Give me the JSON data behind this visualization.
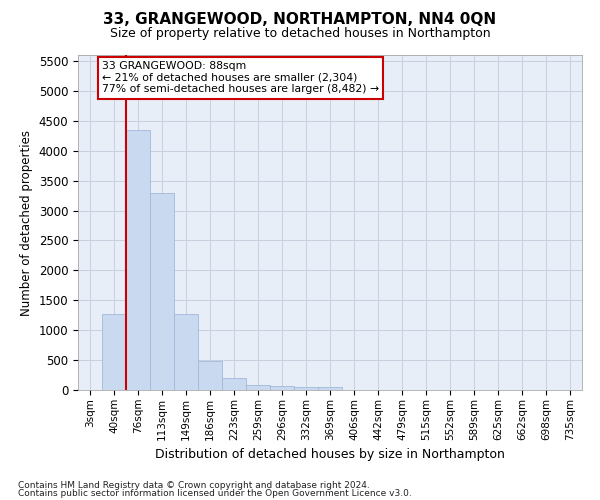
{
  "title": "33, GRANGEWOOD, NORTHAMPTON, NN4 0QN",
  "subtitle": "Size of property relative to detached houses in Northampton",
  "xlabel": "Distribution of detached houses by size in Northampton",
  "ylabel": "Number of detached properties",
  "footnote1": "Contains HM Land Registry data © Crown copyright and database right 2024.",
  "footnote2": "Contains public sector information licensed under the Open Government Licence v3.0.",
  "bar_color": "#c9d9f0",
  "bar_edgecolor": "#a0b8d8",
  "bg_color": "#e8eef8",
  "grid_color": "#c8d0e0",
  "property_line_color": "#cc0000",
  "annotation_box_edgecolor": "#cc0000",
  "categories": [
    "3sqm",
    "40sqm",
    "76sqm",
    "113sqm",
    "149sqm",
    "186sqm",
    "223sqm",
    "259sqm",
    "296sqm",
    "332sqm",
    "369sqm",
    "406sqm",
    "442sqm",
    "479sqm",
    "515sqm",
    "552sqm",
    "589sqm",
    "625sqm",
    "662sqm",
    "698sqm",
    "735sqm"
  ],
  "values": [
    0,
    1270,
    4350,
    3300,
    1270,
    480,
    200,
    90,
    70,
    50,
    50,
    0,
    0,
    0,
    0,
    0,
    0,
    0,
    0,
    0,
    0
  ],
  "ylim": [
    0,
    5600
  ],
  "yticks": [
    0,
    500,
    1000,
    1500,
    2000,
    2500,
    3000,
    3500,
    4000,
    4500,
    5000,
    5500
  ],
  "property_line_x": 1.5,
  "annotation_text_line1": "33 GRANGEWOOD: 88sqm",
  "annotation_text_line2": "← 21% of detached houses are smaller (2,304)",
  "annotation_text_line3": "77% of semi-detached houses are larger (8,482) →"
}
